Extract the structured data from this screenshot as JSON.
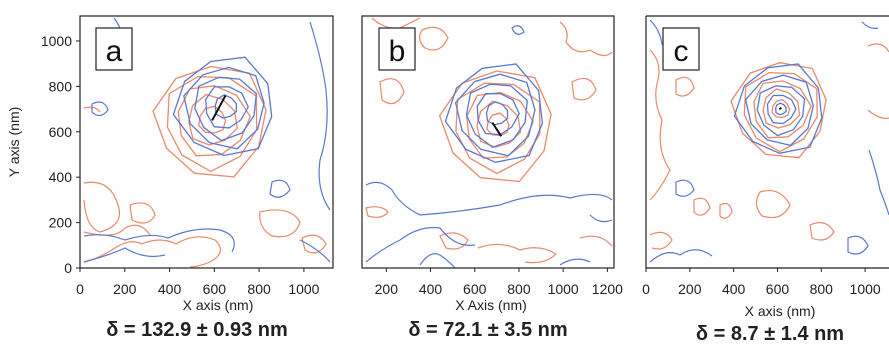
{
  "chart_data": [
    {
      "type": "contour",
      "panel_label": "a",
      "xlabel": "X axis (nm)",
      "ylabel": "Y axis (nm)",
      "xlim": [
        0,
        1130
      ],
      "ylim": [
        0,
        1110
      ],
      "x_ticks": [
        "0",
        "200",
        "400",
        "600",
        "800",
        "1000"
      ],
      "y_ticks": [
        "0",
        "200",
        "400",
        "600",
        "800",
        "1000"
      ],
      "delta_text": "δ = 132.9 ± 0.93 nm",
      "series": [
        {
          "color": "#e8896b",
          "center": [
            590,
            650
          ],
          "radii": [
            60,
            110,
            160,
            210,
            250
          ]
        },
        {
          "color": "#5a78d0",
          "center": [
            650,
            710
          ],
          "radii": [
            50,
            95,
            140,
            180,
            220
          ]
        }
      ],
      "displacement": {
        "x1": 590,
        "y1": 650,
        "x2": 650,
        "y2": 760
      }
    },
    {
      "type": "contour",
      "panel_label": "b",
      "xlabel": "X Axis (nm)",
      "ylabel": "",
      "xlim": [
        90,
        1230
      ],
      "ylim": [
        0,
        1110
      ],
      "x_ticks": [
        "200",
        "400",
        "600",
        "800",
        "1000",
        "1200"
      ],
      "y_ticks": [],
      "delta_text": "δ = 72.1 ± 3.5 nm",
      "series": [
        {
          "color": "#e8896b",
          "center": [
            705,
            630
          ],
          "radii": [
            50,
            100,
            150,
            200,
            250
          ]
        },
        {
          "color": "#5a78d0",
          "center": [
            700,
            680
          ],
          "radii": [
            50,
            95,
            140,
            180,
            220
          ]
        }
      ],
      "displacement": {
        "x1": 680,
        "y1": 640,
        "x2": 720,
        "y2": 580
      }
    },
    {
      "type": "contour",
      "panel_label": "c",
      "xlabel": "X axis (nm)",
      "ylabel": "",
      "xlim": [
        0,
        1150
      ],
      "ylim": [
        0,
        1110
      ],
      "x_ticks": [
        "0",
        "200",
        "400",
        "600",
        "800",
        "1000"
      ],
      "y_ticks": [],
      "delta_text": "δ = 8.7 ± 1.4 nm",
      "series": [
        {
          "color": "#e8896b",
          "center": [
            615,
            700
          ],
          "radii": [
            40,
            85,
            130,
            175,
            215
          ]
        },
        {
          "color": "#5a78d0",
          "center": [
            615,
            700
          ],
          "radii": [
            25,
            65,
            110,
            155,
            200
          ]
        }
      ],
      "displacement": {
        "x1": 608,
        "y1": 700,
        "x2": 618,
        "y2": 705
      }
    }
  ]
}
